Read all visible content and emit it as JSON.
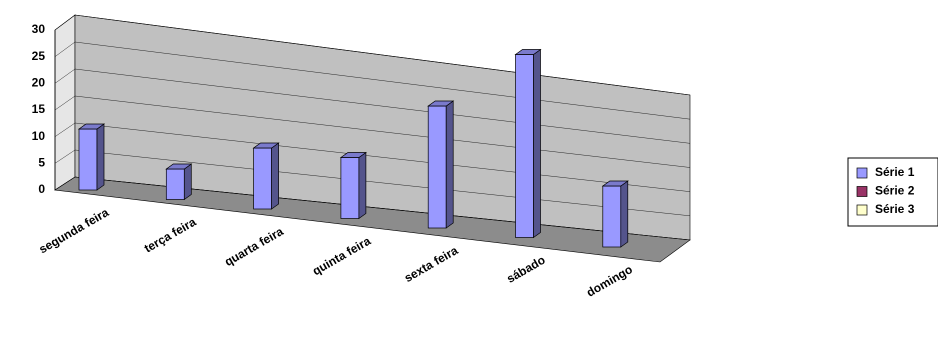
{
  "chart_data": {
    "type": "bar3d",
    "categories": [
      "segunda feira",
      "terça feira",
      "quarta feira",
      "quinta feira",
      "sexta feira",
      "sábado",
      "domingo"
    ],
    "series": [
      {
        "name": "Série 1",
        "color": "#9999ff",
        "values": [
          10,
          5,
          10,
          10,
          20,
          30,
          10
        ]
      },
      {
        "name": "Série 2",
        "color": "#993366",
        "values": [
          null,
          null,
          null,
          null,
          null,
          null,
          null
        ]
      },
      {
        "name": "Série 3",
        "color": "#ffffcc",
        "values": [
          null,
          null,
          null,
          null,
          null,
          null,
          null
        ]
      }
    ],
    "ylim": [
      0,
      30
    ],
    "yticks": [
      0,
      5,
      10,
      15,
      20,
      25,
      30
    ],
    "grid": true,
    "legend": "right"
  }
}
